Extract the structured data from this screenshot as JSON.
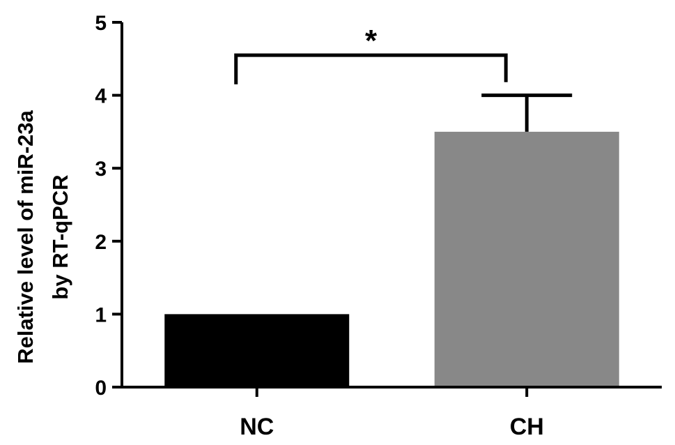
{
  "chart_data": {
    "type": "bar",
    "categories": [
      "NC",
      "CH"
    ],
    "values": [
      1.0,
      3.5
    ],
    "error_upper": [
      null,
      4.0
    ],
    "bar_colors": [
      "#000000",
      "#888888"
    ],
    "ylabel_lines": [
      "Relative level of miR-23a",
      "by RT-qPCR"
    ],
    "ylim": [
      0,
      5
    ],
    "yticks": [
      0,
      1,
      2,
      3,
      4,
      5
    ],
    "grid": false,
    "significance": {
      "between": [
        "NC",
        "CH"
      ],
      "label": "*"
    }
  }
}
